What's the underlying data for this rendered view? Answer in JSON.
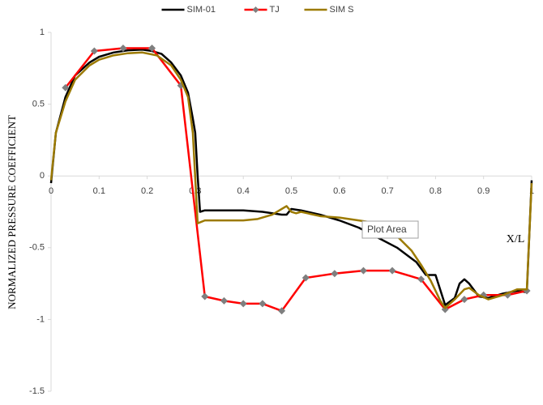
{
  "chart_data": {
    "type": "line",
    "y_label": "NORMALIZED PRESSURE COEFFICIENT",
    "annotation": "X/L",
    "tooltip": "Plot Area",
    "xlim": [
      0,
      1
    ],
    "ylim": [
      -1.5,
      1
    ],
    "xticks": [
      0,
      0.1,
      0.2,
      0.3,
      0.4,
      0.5,
      0.6,
      0.7,
      0.8,
      0.9,
      1
    ],
    "yticks": [
      -1.5,
      -1,
      -0.5,
      0,
      0.5,
      1
    ],
    "legend": "top",
    "grid": false,
    "series": [
      {
        "name": "SIM-01",
        "color": "#000000",
        "marker": false,
        "x": [
          0,
          0.01,
          0.03,
          0.05,
          0.08,
          0.1,
          0.13,
          0.16,
          0.19,
          0.21,
          0.23,
          0.25,
          0.27,
          0.285,
          0.295,
          0.3,
          0.305,
          0.31,
          0.32,
          0.4,
          0.44,
          0.48,
          0.49,
          0.5,
          0.52,
          0.56,
          0.6,
          0.64,
          0.68,
          0.72,
          0.76,
          0.78,
          0.8,
          0.82,
          0.84,
          0.85,
          0.86,
          0.87,
          0.89,
          0.91,
          0.94,
          0.97,
          0.99,
          1
        ],
        "values": [
          -0.05,
          0.3,
          0.55,
          0.7,
          0.79,
          0.83,
          0.86,
          0.875,
          0.88,
          0.87,
          0.85,
          0.79,
          0.7,
          0.58,
          0.4,
          0.3,
          0,
          -0.25,
          -0.24,
          -0.24,
          -0.25,
          -0.27,
          -0.27,
          -0.23,
          -0.24,
          -0.27,
          -0.31,
          -0.36,
          -0.43,
          -0.5,
          -0.6,
          -0.69,
          -0.69,
          -0.9,
          -0.85,
          -0.75,
          -0.72,
          -0.75,
          -0.84,
          -0.85,
          -0.82,
          -0.8,
          -0.81,
          -0.03
        ]
      },
      {
        "name": "TJ",
        "color": "#ff0000",
        "marker": true,
        "marker_color": "#7f7f7f",
        "x": [
          0.03,
          0.09,
          0.15,
          0.21,
          0.27,
          0.32,
          0.36,
          0.4,
          0.44,
          0.48,
          0.53,
          0.59,
          0.65,
          0.71,
          0.77,
          0.82,
          0.86,
          0.9,
          0.95,
          0.99
        ],
        "values": [
          0.615,
          0.87,
          0.89,
          0.89,
          0.63,
          -0.84,
          -0.87,
          -0.89,
          -0.89,
          -0.94,
          -0.71,
          -0.68,
          -0.66,
          -0.66,
          -0.72,
          -0.93,
          -0.86,
          -0.83,
          -0.83,
          -0.8
        ]
      },
      {
        "name": "SIM S",
        "color": "#9c7a00",
        "marker": false,
        "x": [
          0,
          0.01,
          0.03,
          0.05,
          0.08,
          0.1,
          0.13,
          0.16,
          0.19,
          0.22,
          0.25,
          0.27,
          0.285,
          0.295,
          0.305,
          0.32,
          0.36,
          0.4,
          0.43,
          0.46,
          0.49,
          0.5,
          0.51,
          0.52,
          0.56,
          0.6,
          0.64,
          0.68,
          0.72,
          0.75,
          0.77,
          0.79,
          0.81,
          0.82,
          0.84,
          0.86,
          0.87,
          0.89,
          0.91,
          0.94,
          0.97,
          0.99,
          1
        ],
        "values": [
          -0.03,
          0.3,
          0.52,
          0.67,
          0.77,
          0.81,
          0.84,
          0.855,
          0.86,
          0.84,
          0.77,
          0.67,
          0.55,
          0.3,
          -0.33,
          -0.31,
          -0.31,
          -0.31,
          -0.3,
          -0.27,
          -0.21,
          -0.25,
          -0.26,
          -0.25,
          -0.28,
          -0.29,
          -0.31,
          -0.33,
          -0.42,
          -0.52,
          -0.62,
          -0.73,
          -0.87,
          -0.92,
          -0.86,
          -0.79,
          -0.78,
          -0.83,
          -0.86,
          -0.83,
          -0.79,
          -0.79,
          -0.05
        ]
      }
    ]
  }
}
